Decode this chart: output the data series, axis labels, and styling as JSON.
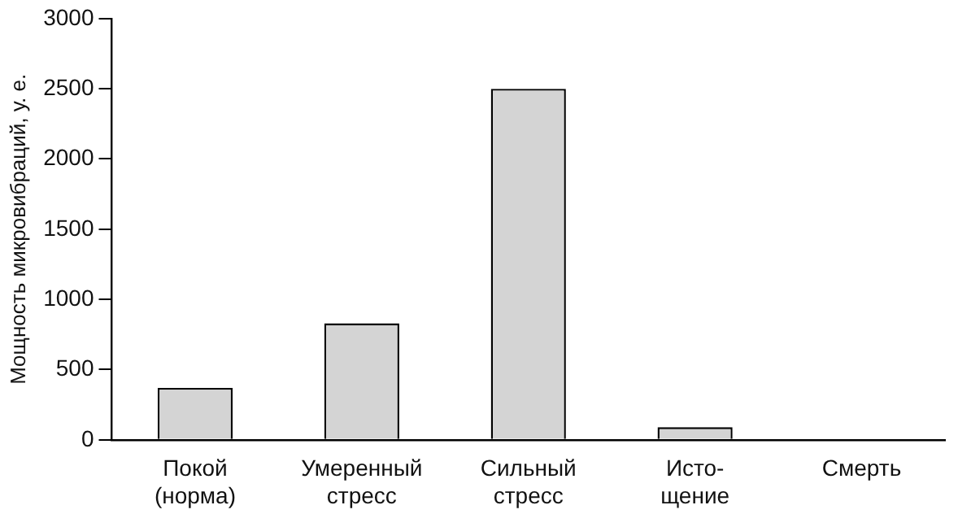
{
  "chart_data": {
    "type": "bar",
    "ylabel": "Мощность микровибраций, у. е.",
    "categories": [
      "Покой\n(норма)",
      "Умеренный\nстресс",
      "Сильный\nстресс",
      "Исто-\nщение",
      "Смерть"
    ],
    "values": [
      370,
      830,
      2500,
      90,
      0
    ],
    "color": "#d4d4d4",
    "ylim": [
      0,
      3000
    ],
    "yticks": [
      0,
      500,
      1000,
      1500,
      2000,
      2500,
      3000
    ],
    "grid": false,
    "legend": false
  }
}
